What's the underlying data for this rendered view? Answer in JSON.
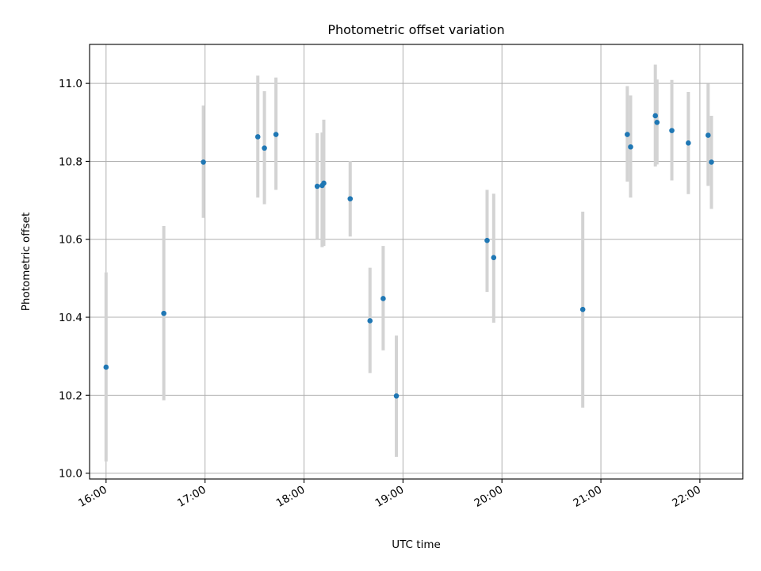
{
  "chart_data": {
    "type": "scatter",
    "title": "Photometric offset variation",
    "xlabel": "UTC time",
    "ylabel": "Photometric offset",
    "x_axis_type": "time",
    "xlim": [
      "15:50",
      "22:26"
    ],
    "ylim": [
      9.985,
      11.1
    ],
    "x_ticks": [
      "16:00",
      "17:00",
      "18:00",
      "19:00",
      "20:00",
      "21:00",
      "22:00"
    ],
    "y_ticks": [
      10.0,
      10.2,
      10.4,
      10.6,
      10.8,
      11.0
    ],
    "y_tick_labels": [
      "10.0",
      "10.2",
      "10.4",
      "10.6",
      "10.8",
      "11.0"
    ],
    "grid": true,
    "point_color": "#1f77b4",
    "errorbar_color": "#d3d3d3",
    "points": [
      {
        "x": "16:00",
        "y": 10.272,
        "lo": 10.03,
        "hi": 10.515
      },
      {
        "x": "16:35",
        "y": 10.41,
        "lo": 10.187,
        "hi": 10.634
      },
      {
        "x": "16:59",
        "y": 10.798,
        "lo": 10.655,
        "hi": 10.943
      },
      {
        "x": "17:32",
        "y": 10.863,
        "lo": 10.707,
        "hi": 11.02
      },
      {
        "x": "17:36",
        "y": 10.834,
        "lo": 10.69,
        "hi": 10.98
      },
      {
        "x": "17:43",
        "y": 10.869,
        "lo": 10.727,
        "hi": 11.015
      },
      {
        "x": "18:08",
        "y": 10.736,
        "lo": 10.6,
        "hi": 10.872
      },
      {
        "x": "18:11",
        "y": 10.738,
        "lo": 10.58,
        "hi": 10.874
      },
      {
        "x": "18:12",
        "y": 10.744,
        "lo": 10.583,
        "hi": 10.907
      },
      {
        "x": "18:28",
        "y": 10.704,
        "lo": 10.607,
        "hi": 10.801
      },
      {
        "x": "18:40",
        "y": 10.391,
        "lo": 10.257,
        "hi": 10.527
      },
      {
        "x": "18:48",
        "y": 10.448,
        "lo": 10.315,
        "hi": 10.583
      },
      {
        "x": "18:56",
        "y": 10.198,
        "lo": 10.042,
        "hi": 10.353
      },
      {
        "x": "19:51",
        "y": 10.597,
        "lo": 10.465,
        "hi": 10.727
      },
      {
        "x": "19:55",
        "y": 10.553,
        "lo": 10.386,
        "hi": 10.717
      },
      {
        "x": "20:49",
        "y": 10.42,
        "lo": 10.168,
        "hi": 10.671
      },
      {
        "x": "21:16",
        "y": 10.869,
        "lo": 10.748,
        "hi": 10.993
      },
      {
        "x": "21:18",
        "y": 10.837,
        "lo": 10.707,
        "hi": 10.969
      },
      {
        "x": "21:33",
        "y": 10.917,
        "lo": 10.787,
        "hi": 11.048
      },
      {
        "x": "21:34",
        "y": 10.9,
        "lo": 10.792,
        "hi": 11.01
      },
      {
        "x": "21:43",
        "y": 10.879,
        "lo": 10.751,
        "hi": 11.009
      },
      {
        "x": "21:53",
        "y": 10.847,
        "lo": 10.716,
        "hi": 10.978
      },
      {
        "x": "22:05",
        "y": 10.867,
        "lo": 10.737,
        "hi": 10.999
      },
      {
        "x": "22:07",
        "y": 10.798,
        "lo": 10.678,
        "hi": 10.917
      }
    ]
  }
}
